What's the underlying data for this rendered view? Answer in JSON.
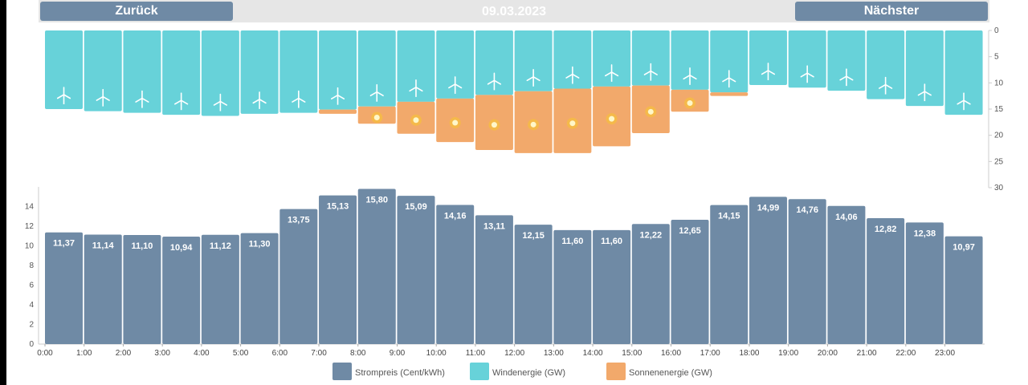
{
  "nav": {
    "back_label": "Zurück",
    "next_label": "Nächster",
    "date": "09.03.2023"
  },
  "colors": {
    "price": "#6f8aa5",
    "wind": "#67d2d9",
    "solar": "#f2a96b",
    "sun": "#f7c62f",
    "nav": "#6f8aa5"
  },
  "icons": {
    "wind": "wind-turbine-icon",
    "solar": "sun-icon"
  },
  "chart_data": [
    {
      "type": "bar",
      "title": "",
      "categories": [
        "0:00",
        "1:00",
        "2:00",
        "3:00",
        "4:00",
        "5:00",
        "6:00",
        "7:00",
        "8:00",
        "9:00",
        "10:00",
        "11:00",
        "12:00",
        "13:00",
        "14:00",
        "15:00",
        "16:00",
        "17:00",
        "18:00",
        "19:00",
        "20:00",
        "21:00",
        "22:00",
        "23:00"
      ],
      "stacked": true,
      "y_inverted": true,
      "ylim": [
        0,
        30
      ],
      "yticks": [
        "0",
        "5",
        "10",
        "15",
        "20",
        "25",
        "30"
      ],
      "series": [
        {
          "name": "Windenergie (GW)",
          "values": [
            15,
            15.4,
            15.7,
            16.1,
            16.3,
            15.9,
            15.7,
            15.1,
            14.5,
            13.6,
            13,
            12.3,
            11.6,
            11.1,
            10.7,
            10.5,
            11.3,
            11.8,
            10.4,
            10.9,
            11.5,
            13.1,
            14.4,
            16.1
          ]
        },
        {
          "name": "Sonnenenergie (GW)",
          "values": [
            0,
            0,
            0,
            0,
            0,
            0,
            0,
            0.8,
            3.3,
            6.1,
            8.3,
            10.5,
            11.8,
            12.3,
            11.4,
            9.1,
            4.2,
            0.7,
            0,
            0,
            0,
            0,
            0,
            0
          ]
        }
      ]
    },
    {
      "type": "bar",
      "title": "",
      "categories": [
        "0:00",
        "1:00",
        "2:00",
        "3:00",
        "4:00",
        "5:00",
        "6:00",
        "7:00",
        "8:00",
        "9:00",
        "10:00",
        "11:00",
        "12:00",
        "13:00",
        "14:00",
        "15:00",
        "16:00",
        "17:00",
        "18:00",
        "19:00",
        "20:00",
        "21:00",
        "22:00",
        "23:00"
      ],
      "ylim": [
        0,
        16
      ],
      "yticks": [
        "0",
        "2",
        "4",
        "6",
        "8",
        "10",
        "12",
        "14"
      ],
      "series": [
        {
          "name": "Strompreis (Cent/kWh)",
          "values": [
            11.37,
            11.14,
            11.1,
            10.94,
            11.12,
            11.3,
            13.75,
            15.13,
            15.8,
            15.09,
            14.16,
            13.11,
            12.15,
            11.6,
            11.6,
            12.22,
            12.65,
            14.15,
            14.99,
            14.76,
            14.06,
            12.82,
            12.38,
            10.97
          ]
        }
      ],
      "data_labels": [
        "11,37",
        "11,14",
        "11,10",
        "10,94",
        "11,12",
        "11,30",
        "13,75",
        "15,13",
        "15,80",
        "15,09",
        "14,16",
        "13,11",
        "12,15",
        "11,60",
        "11,60",
        "12,22",
        "12,65",
        "14,15",
        "14,99",
        "14,76",
        "14,06",
        "12,82",
        "12,38",
        "10,97"
      ]
    }
  ],
  "legend": [
    {
      "label": "Strompreis (Cent/kWh)",
      "color": "#6f8aa5"
    },
    {
      "label": "Windenergie (GW)",
      "color": "#67d2d9"
    },
    {
      "label": "Sonnenenergie (GW)",
      "color": "#f2a96b"
    }
  ]
}
